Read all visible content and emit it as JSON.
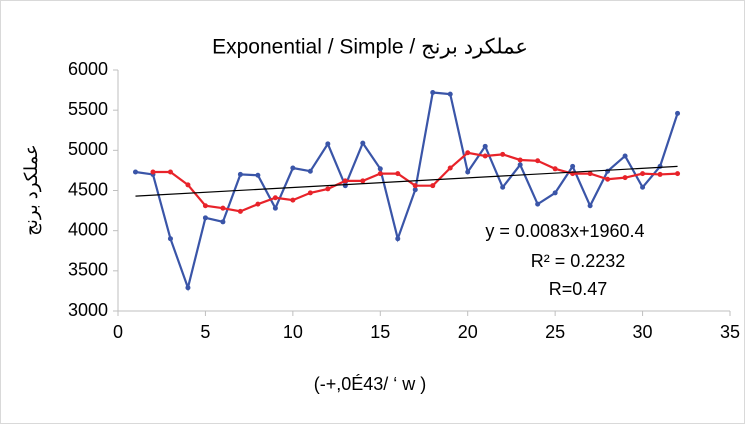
{
  "chart_data": {
    "type": "line",
    "title": "Exponential / Simple / عملکرد برنج",
    "y_label": "عملکرد برنج",
    "x_label": "(-+,0É43/ ‘ w )",
    "annotations": [
      "y = 0.0083x+1960.4",
      "R² = 0.2232",
      "R=0.47"
    ],
    "x": [
      1,
      2,
      3,
      4,
      5,
      6,
      7,
      8,
      9,
      10,
      11,
      12,
      13,
      14,
      15,
      16,
      17,
      18,
      19,
      20,
      21,
      22,
      23,
      24,
      25,
      26,
      27,
      28,
      29,
      30,
      31,
      32
    ],
    "series": [
      {
        "color": "#3a55a8",
        "values": [
          4730,
          4700,
          3900,
          3290,
          4160,
          4110,
          4700,
          4690,
          4280,
          4780,
          4740,
          5080,
          4560,
          5090,
          4770,
          3900,
          4510,
          5720,
          5700,
          4730,
          5050,
          4540,
          4820,
          4330,
          4470,
          4800,
          4310,
          4740,
          4930,
          4540,
          4800,
          5460
        ]
      },
      {
        "color": "#e8232a",
        "values": [
          null,
          4730,
          4730,
          4570,
          4310,
          4280,
          4240,
          4330,
          4410,
          4380,
          4470,
          4520,
          4620,
          4620,
          4710,
          4710,
          4560,
          4560,
          4780,
          4970,
          4930,
          4950,
          4880,
          4870,
          4770,
          4710,
          4710,
          4640,
          4660,
          4710,
          4700,
          4710
        ]
      }
    ],
    "trendline": {
      "color": "#000000",
      "x": [
        1,
        32
      ],
      "values": [
        4430,
        4800
      ]
    },
    "xlim": [
      0,
      35
    ],
    "xticks": [
      0,
      5,
      10,
      15,
      20,
      25,
      30,
      35
    ],
    "ylim": [
      3000,
      6000
    ],
    "yticks": [
      3000,
      3500,
      4000,
      4500,
      5000,
      5500,
      6000
    ],
    "grid": false
  }
}
